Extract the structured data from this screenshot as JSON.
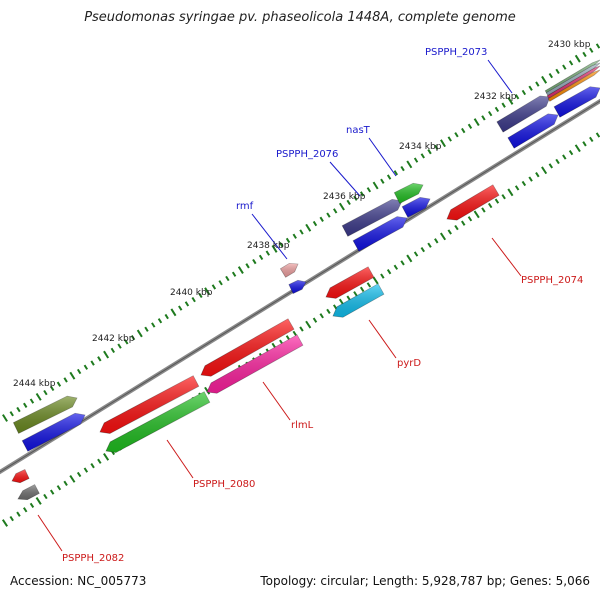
{
  "title": "Pseudomonas syringae pv. phaseolicola 1448A, complete genome",
  "footer": {
    "accession": "Accession: NC_005773",
    "summary": "Topology: circular; Length: 5,928,787 bp; Genes: 5,066"
  },
  "colors": {
    "backbone": "#8a8a8a",
    "tick": "#1e7a1e",
    "forward_label": "#1a1acc",
    "reverse_label": "#cc1a1a"
  },
  "kbp_marks": [
    {
      "kbp": 2430,
      "label": "2430 kbp"
    },
    {
      "kbp": 2432,
      "label": "2432 kbp"
    },
    {
      "kbp": 2434,
      "label": "2434 kbp"
    },
    {
      "kbp": 2436,
      "label": "2436 kbp"
    },
    {
      "kbp": 2438,
      "label": "2438 kbp"
    },
    {
      "kbp": 2440,
      "label": "2440 kbp"
    },
    {
      "kbp": 2442,
      "label": "2442 kbp"
    },
    {
      "kbp": 2444,
      "label": "2444 kbp"
    }
  ],
  "gene_labels": [
    {
      "name": "PSPPH_2073",
      "strand": "forward"
    },
    {
      "name": "nasT",
      "strand": "forward"
    },
    {
      "name": "PSPPH_2076",
      "strand": "forward"
    },
    {
      "name": "rmf",
      "strand": "forward"
    },
    {
      "name": "PSPPH_2074",
      "strand": "reverse"
    },
    {
      "name": "pyrD",
      "strand": "reverse"
    },
    {
      "name": "rlmL",
      "strand": "reverse"
    },
    {
      "name": "PSPPH_2080",
      "strand": "reverse"
    },
    {
      "name": "PSPPH_2082",
      "strand": "reverse"
    }
  ]
}
